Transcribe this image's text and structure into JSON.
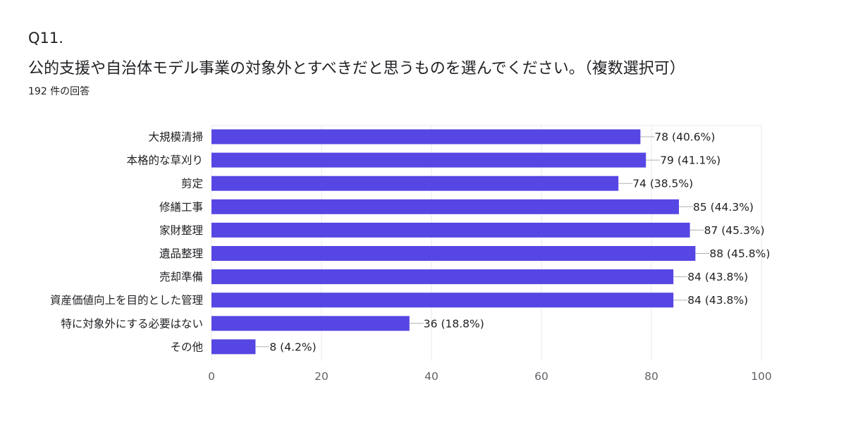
{
  "question": {
    "number": "Q11.",
    "title": "公的支援や自治体モデル事業の対象外とすべきだと思うものを選んでください。（複数選択可）",
    "response_count": "192 件の回答"
  },
  "colors": {
    "bar": "#5646e3",
    "grid": "#e8eaed",
    "leader": "#b0b0b0"
  },
  "chart_data": {
    "type": "bar",
    "orientation": "horizontal",
    "title": "公的支援や自治体モデル事業の対象外とすべきだと思うものを選んでください。（複数選択可）",
    "categories": [
      "大規模清掃",
      "本格的な草刈り",
      "剪定",
      "修繕工事",
      "家財整理",
      "遺品整理",
      "売却準備",
      "資産価値向上を目的とした管理",
      "特に対象外にする必要はない",
      "その他"
    ],
    "values": [
      78,
      79,
      74,
      85,
      87,
      88,
      84,
      84,
      36,
      8
    ],
    "value_labels": [
      "78 (40.6%)",
      "79 (41.1%)",
      "74 (38.5%)",
      "85 (44.3%)",
      "87 (45.3%)",
      "88 (45.8%)",
      "84 (43.8%)",
      "84 (43.8%)",
      "36 (18.8%)",
      "8 (4.2%)"
    ],
    "xlim": [
      0,
      100
    ],
    "xticks": [
      0,
      20,
      40,
      60,
      80,
      100
    ],
    "xlabel": "",
    "ylabel": "",
    "grid": true,
    "legend": "none"
  }
}
